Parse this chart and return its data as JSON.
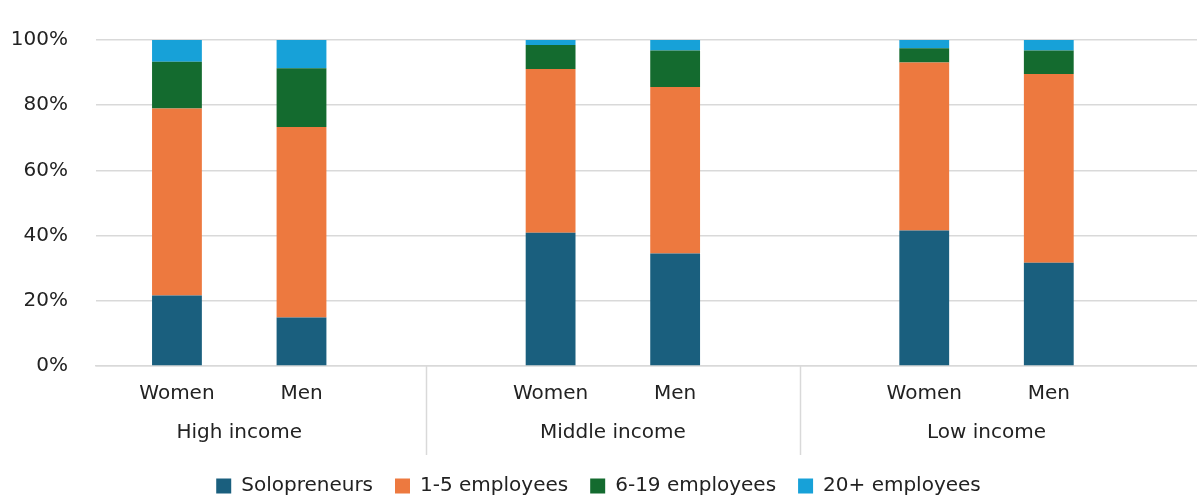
{
  "chart_data": {
    "type": "bar",
    "categories": [
      "Women",
      "Men",
      null,
      "Women",
      "Men",
      null,
      "Women",
      "Men"
    ],
    "series": [
      {
        "name": "Solopreneurs",
        "color": "#1a5f7e",
        "values": [
          21.6,
          14.9,
          null,
          40.9,
          34.5,
          null,
          41.6,
          31.7
        ]
      },
      {
        "name": "1-5 employees",
        "color": "#ed793f",
        "values": [
          57.4,
          58.4,
          null,
          50.2,
          51.1,
          null,
          51.5,
          57.9
        ]
      },
      {
        "name": "6-19 employees",
        "color": "#146b2f",
        "values": [
          14.3,
          18.0,
          null,
          7.4,
          11.2,
          null,
          4.4,
          7.2
        ]
      },
      {
        "name": "20+ employees",
        "color": "#17a1d8",
        "values": [
          6.7,
          8.7,
          null,
          1.5,
          3.2,
          null,
          2.5,
          3.2
        ]
      }
    ],
    "stacked": true,
    "ylim": [
      0,
      100
    ],
    "yticks": [
      {
        "value": 0,
        "label": "0%"
      },
      {
        "value": 20,
        "label": "20%"
      },
      {
        "value": 40,
        "label": "40%"
      },
      {
        "value": 60,
        "label": "60%"
      },
      {
        "value": 80,
        "label": "80%"
      },
      {
        "value": 100,
        "label": "100%"
      }
    ],
    "grid": "y",
    "legend": "bottom",
    "annotations": [
      "High income",
      "Middle income",
      "Low income"
    ]
  }
}
